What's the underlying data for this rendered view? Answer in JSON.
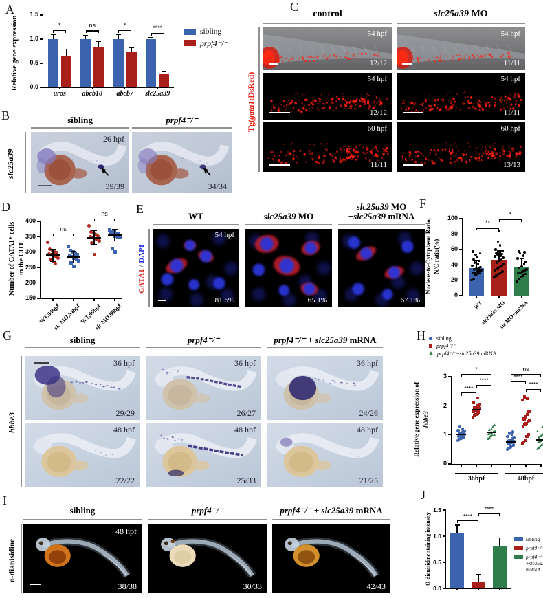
{
  "colors": {
    "sibling_blue": "#3b63ae",
    "mutant_red": "#a82019",
    "rescue_green": "#2e7d4a",
    "wt_scatter_red": "#b02a1e",
    "mo_scatter_blue": "#3b63ae",
    "dsred_red": "#e81a10",
    "gata1_red": "#d42520",
    "dapi_blue": "#2a36d8"
  },
  "panels": {
    "A": {
      "label": "A"
    },
    "B": {
      "label": "B",
      "side_label_segs": [
        {
          "t": "slc25a39",
          "i": 1
        }
      ],
      "columns": [
        {
          "segs": [
            {
              "t": "sibling"
            }
          ]
        },
        {
          "segs": [
            {
              "t": "prpf4⁻/⁻",
              "i": 1
            }
          ]
        }
      ],
      "images": [
        {
          "time": "26 hpf",
          "count": "39/39"
        },
        {
          "count": "34/34"
        }
      ]
    },
    "C": {
      "label": "C",
      "side_label_segs": [
        {
          "t": "Tg(",
          "c": "#e81a10"
        },
        {
          "t": "gata1",
          "i": 1,
          "c": "#e81a10"
        },
        {
          "t": ":DsRed)",
          "c": "#e81a10"
        }
      ],
      "columns": [
        {
          "segs": [
            {
              "t": "control"
            }
          ]
        },
        {
          "segs": [
            {
              "t": "slc25a39",
              "i": 1
            },
            {
              "t": " MO"
            }
          ]
        }
      ],
      "rows": [
        {
          "cells": [
            {
              "time": "54 hpf",
              "count": "12/12"
            },
            {
              "time": "54 hpf",
              "count": "11/11"
            }
          ]
        },
        {
          "cells": [
            {
              "time": "54 hpf",
              "count": "12/12"
            },
            {
              "time": "54 hpf",
              "count": "11/11"
            }
          ]
        },
        {
          "cells": [
            {
              "time": "60 hpf",
              "count": "11/11"
            },
            {
              "time": "60 hpf",
              "count": "13/13"
            }
          ]
        }
      ]
    },
    "D": {
      "label": "D"
    },
    "E": {
      "label": "E",
      "side_label_segs": [
        {
          "t": "GATA1",
          "c": "#d42520"
        },
        {
          "t": " / ",
          "c": "#4a4a55"
        },
        {
          "t": "DAPI",
          "c": "#2a36d8"
        }
      ],
      "columns": [
        {
          "line1": [
            {
              "t": "WT"
            }
          ]
        },
        {
          "line1": [
            {
              "t": "slc25a39",
              "i": 1
            },
            {
              "t": " MO"
            }
          ]
        },
        {
          "line1": [
            {
              "t": "slc25a39",
              "i": 1
            },
            {
              "t": " MO"
            }
          ],
          "line2": [
            {
              "t": "+"
            },
            {
              "t": "slc25a39",
              "i": 1
            },
            {
              "t": " mRNA"
            }
          ]
        }
      ],
      "images": [
        {
          "time": "54 hpf",
          "pct": "81.6%"
        },
        {
          "pct": "65.1%"
        },
        {
          "pct": "67.1%"
        }
      ]
    },
    "F": {
      "label": "F"
    },
    "G": {
      "label": "G",
      "side_label_segs": [
        {
          "t": "hbbe3",
          "i": 1
        }
      ],
      "columns": [
        {
          "segs": [
            {
              "t": "sibling"
            }
          ]
        },
        {
          "segs": [
            {
              "t": "prpf4⁻/⁻",
              "i": 1
            }
          ]
        },
        {
          "segs": [
            {
              "t": "prpf4⁻/⁻",
              "i": 1
            },
            {
              "t": " + "
            },
            {
              "t": "slc25a39",
              "i": 1
            },
            {
              "t": " mRNA"
            }
          ]
        }
      ],
      "rows": [
        {
          "time": "36 hpf",
          "counts": [
            "29/29",
            "26/27",
            "24/26"
          ]
        },
        {
          "time": "48 hpf",
          "counts": [
            "22/22",
            "25/33",
            "21/25"
          ]
        }
      ]
    },
    "H": {
      "label": "H"
    },
    "I": {
      "label": "I",
      "side_label_segs": [
        {
          "t": "o-dianisidine"
        }
      ],
      "columns": [
        {
          "segs": [
            {
              "t": "sibling"
            }
          ]
        },
        {
          "segs": [
            {
              "t": "prpf4⁻/⁻",
              "i": 1
            }
          ]
        },
        {
          "segs": [
            {
              "t": "prpf4⁻/⁻",
              "i": 1
            },
            {
              "t": " + "
            },
            {
              "t": "slc25a39",
              "i": 1
            },
            {
              "t": " mRNA"
            }
          ]
        }
      ],
      "images": [
        {
          "time": "48 hpf",
          "count": "38/38"
        },
        {
          "count": "30/33"
        },
        {
          "count": "42/43"
        }
      ]
    },
    "J": {
      "label": "J"
    }
  },
  "chart_data": [
    {
      "panel": "A",
      "type": "grouped_bar",
      "ylabel": "Relative gene expression",
      "ylim": [
        0,
        1.5
      ],
      "yticks": [
        "0.0",
        "0.5",
        "1.0",
        "1.5"
      ],
      "categories": [
        "uros",
        "abcb10",
        "abcb7",
        "slc25a39"
      ],
      "series": [
        {
          "name": "sibling",
          "color": "#3b63ae",
          "values": [
            1.0,
            1.0,
            1.0,
            1.0
          ],
          "errors": [
            0.09,
            0.08,
            0.09,
            0.03
          ]
        },
        {
          "name": "prpf4⁻/⁻",
          "color": "#a82019",
          "values": [
            0.66,
            0.85,
            0.73,
            0.28
          ],
          "errors": [
            0.13,
            0.1,
            0.09,
            0.04
          ]
        }
      ],
      "significance": [
        {
          "label": "*"
        },
        {
          "label": "ns"
        },
        {
          "label": "*"
        },
        {
          "label": "****"
        }
      ],
      "legend": [
        {
          "label_segs": [
            {
              "t": "sibling"
            }
          ],
          "color": "#3b63ae"
        },
        {
          "label_segs": [
            {
              "t": "prpf4⁻/⁻",
              "i": 1
            }
          ],
          "color": "#a82019"
        }
      ]
    },
    {
      "panel": "D",
      "type": "scatter_groups",
      "ylabel_line1": "Number of  GATA1⁺ cells",
      "ylabel_line2": "in the CHT",
      "ylim": [
        150,
        400
      ],
      "yticks": [
        "150",
        "200",
        "250",
        "300",
        "350",
        "400"
      ],
      "groups": [
        {
          "label_segs": [
            {
              "t": "WT,54hpf"
            }
          ],
          "marker": "circle",
          "color": "#b02a1e",
          "mean": 290,
          "sd": 20,
          "points": [
            332,
            310,
            305,
            300,
            298,
            295,
            291,
            288,
            285,
            281,
            276,
            270,
            263
          ]
        },
        {
          "label_segs": [
            {
              "t": "slc",
              "i": 1
            },
            {
              "t": " MO,54hpf"
            }
          ],
          "marker": "square",
          "color": "#3b63ae",
          "mean": 284,
          "sd": 19,
          "points": [
            318,
            306,
            300,
            295,
            291,
            288,
            284,
            280,
            276,
            271,
            264,
            253
          ]
        },
        {
          "label_segs": [
            {
              "t": "WT,60hpf"
            }
          ],
          "marker": "circle",
          "color": "#b02a1e",
          "mean": 347,
          "sd": 22,
          "points": [
            385,
            366,
            360,
            356,
            352,
            350,
            347,
            344,
            340,
            336,
            330,
            291
          ]
        },
        {
          "label_segs": [
            {
              "t": "slc",
              "i": 1
            },
            {
              "t": " MO,60hpf"
            }
          ],
          "marker": "square",
          "color": "#3b63ae",
          "mean": 355,
          "sd": 18,
          "points": [
            372,
            368,
            365,
            362,
            360,
            358,
            356,
            353,
            350,
            347,
            312,
            301
          ]
        }
      ],
      "significance": [
        {
          "a": 0,
          "b": 1,
          "y": 352,
          "label": "ns"
        },
        {
          "a": 2,
          "b": 3,
          "y": 400,
          "label": "ns"
        }
      ]
    },
    {
      "panel": "F",
      "type": "bar_scatter",
      "ylabel_line1": "Nucleus-to-Cytoplasm Ratio,",
      "ylabel_line2": "N/C ratio(%)",
      "ylim": [
        0,
        100
      ],
      "yticks": [
        "0",
        "20",
        "40",
        "60",
        "80",
        "100"
      ],
      "categories": [
        {
          "segs": [
            {
              "t": "WT"
            }
          ]
        },
        {
          "segs": [
            {
              "t": "slc25a39",
              "i": 1
            },
            {
              "t": " MO"
            }
          ]
        },
        {
          "segs": [
            {
              "t": "slc",
              "i": 1
            },
            {
              "t": " MO+mRNA"
            }
          ]
        }
      ],
      "bars": [
        {
          "value": 36,
          "error": 10,
          "color": "#3b63ae",
          "points": [
            20,
            21,
            27,
            28,
            29,
            30,
            30,
            31,
            32,
            33,
            34,
            35,
            36,
            37,
            39,
            41,
            43,
            45,
            47,
            50,
            53,
            55,
            57
          ]
        },
        {
          "value": 46,
          "error": 12,
          "color": "#a82019",
          "points": [
            24,
            26,
            28,
            30,
            31,
            33,
            35,
            37,
            39,
            41,
            43,
            45,
            47,
            49,
            51,
            52,
            53,
            54,
            55,
            56,
            57,
            58,
            60,
            65,
            70,
            84
          ]
        },
        {
          "value": 37,
          "error": 11,
          "color": "#2e7d4a",
          "points": [
            18,
            21,
            24,
            26,
            28,
            29,
            30,
            31,
            32,
            34,
            36,
            38,
            41,
            44,
            48,
            52,
            55,
            56,
            57
          ]
        }
      ],
      "significance": [
        {
          "a": 0,
          "b": 1,
          "y": 88,
          "label": "**"
        },
        {
          "a": 1,
          "b": 2,
          "y": 99,
          "label": "*"
        }
      ]
    },
    {
      "panel": "H",
      "type": "scatter_grouped2",
      "ylabel_line1": "Relative gene expression of",
      "ylabel_line2": "hbbe3",
      "ylim": [
        0,
        3
      ],
      "yticks": [
        "0",
        "1",
        "2",
        "3"
      ],
      "group_labels": [
        "36hpf",
        "48hpf"
      ],
      "legend": [
        {
          "label_segs": [
            {
              "t": "sibling"
            }
          ],
          "color": "#3b63ae",
          "marker": "circle"
        },
        {
          "label_segs": [
            {
              "t": "prpf4⁻/⁻",
              "i": 1
            }
          ],
          "color": "#a82019",
          "marker": "square"
        },
        {
          "label_segs": [
            {
              "t": "prpf4⁻/⁻",
              "i": 1
            },
            {
              "t": "+"
            },
            {
              "t": "slc25a39",
              "i": 1
            },
            {
              "t": " mRNA"
            }
          ],
          "color": "#2e7d4a",
          "marker": "triangle"
        }
      ],
      "clusters": [
        {
          "group": "36hpf",
          "marker": "circle",
          "color": "#3b63ae",
          "mean": 1.0,
          "points": [
            0.8,
            0.85,
            0.88,
            0.9,
            0.92,
            0.95,
            0.97,
            1.0,
            1.0,
            1.02,
            1.05,
            1.07,
            1.1,
            1.12,
            1.15,
            1.2,
            1.27
          ]
        },
        {
          "group": "36hpf",
          "marker": "square",
          "color": "#a82019",
          "mean": 1.88,
          "points": [
            1.6,
            1.65,
            1.7,
            1.74,
            1.78,
            1.8,
            1.83,
            1.85,
            1.88,
            1.9,
            1.93,
            1.96,
            2.0,
            2.05,
            2.1,
            2.27
          ]
        },
        {
          "group": "36hpf",
          "marker": "triangle",
          "color": "#2e7d4a",
          "mean": 1.07,
          "points": [
            0.85,
            0.9,
            0.95,
            0.98,
            1.0,
            1.03,
            1.05,
            1.08,
            1.1,
            1.13,
            1.16,
            1.2,
            1.25,
            1.32
          ]
        },
        {
          "group": "48hpf",
          "marker": "circle",
          "color": "#3b63ae",
          "mean": 0.76,
          "points": [
            0.5,
            0.55,
            0.58,
            0.62,
            0.65,
            0.68,
            0.7,
            0.73,
            0.75,
            0.78,
            0.8,
            0.83,
            0.86,
            0.9,
            0.95,
            1.0,
            1.05,
            1.1
          ]
        },
        {
          "group": "48hpf",
          "marker": "square",
          "color": "#a82019",
          "mean": 1.55,
          "points": [
            0.7,
            0.75,
            0.8,
            0.95,
            1.0,
            1.3,
            1.35,
            1.4,
            1.45,
            1.5,
            1.55,
            1.62,
            1.7,
            1.8,
            2.2,
            2.25,
            2.3
          ]
        },
        {
          "group": "48hpf",
          "marker": "triangle",
          "color": "#2e7d4a",
          "mean": 0.82,
          "points": [
            0.5,
            0.55,
            0.6,
            0.65,
            0.7,
            0.73,
            0.76,
            0.79,
            0.82,
            0.85,
            0.9,
            0.95,
            1.0,
            1.05,
            1.12,
            1.25
          ]
        }
      ],
      "significance": [
        {
          "a": 0,
          "b": 1,
          "y": 2.45,
          "label": "****"
        },
        {
          "a": 1,
          "b": 2,
          "y": 2.72,
          "label": "****"
        },
        {
          "a": 0,
          "b": 2,
          "y": 3.1,
          "label": "*"
        },
        {
          "a": 4,
          "b": 5,
          "y": 2.58,
          "label": "****"
        },
        {
          "a": 3,
          "b": 4,
          "y": 2.85,
          "label": "****"
        },
        {
          "a": 3,
          "b": 5,
          "y": 3.1,
          "label": "ns"
        }
      ]
    },
    {
      "panel": "J",
      "type": "bar",
      "ylabel": "O-dianisidine staining intensity",
      "ylim": [
        0,
        1.5
      ],
      "yticks": [
        "0.0",
        "0.5",
        "1.0",
        "1.5"
      ],
      "bars": [
        {
          "label": "sibling",
          "value": 1.05,
          "error": 0.16,
          "color": "#3b63ae"
        },
        {
          "label": "prpf4⁻/⁻",
          "value": 0.13,
          "error": 0.14,
          "color": "#a82019"
        },
        {
          "label": "prpf4⁻/⁻ +slc25a39 mRNA",
          "value": 0.81,
          "error": 0.16,
          "color": "#2e7d4a"
        }
      ],
      "significance": [
        {
          "a": 0,
          "b": 1,
          "y": 1.3,
          "label": "****"
        },
        {
          "a": 1,
          "b": 2,
          "y": 1.44,
          "label": "****"
        }
      ],
      "legend": [
        {
          "label_segs": [
            {
              "t": "sibling"
            }
          ],
          "color": "#3b63ae"
        },
        {
          "label_segs": [
            {
              "t": "prpf4⁻/⁻",
              "i": 1
            }
          ],
          "color": "#a82019"
        },
        {
          "label_segs": [
            {
              "t": "prpf4⁻/⁻",
              "i": 1
            }
          ],
          "label2_segs": [
            {
              "t": "+"
            },
            {
              "t": "slc25a39",
              "i": 1
            },
            {
              "t": " mRNA"
            }
          ],
          "color": "#2e7d4a"
        }
      ]
    }
  ]
}
